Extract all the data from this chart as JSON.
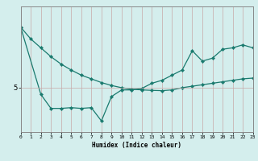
{
  "xlabel": "Humidex (Indice chaleur)",
  "background_color": "#d4eeed",
  "line_color": "#1a7a6e",
  "xlim": [
    0,
    23
  ],
  "ylim": [
    2.0,
    10.5
  ],
  "ytick_pos": 5,
  "xticks": [
    0,
    1,
    2,
    3,
    4,
    5,
    6,
    7,
    8,
    9,
    10,
    11,
    12,
    13,
    14,
    15,
    16,
    17,
    18,
    19,
    20,
    21,
    22,
    23
  ],
  "line1_x": [
    0,
    1,
    2,
    3,
    4,
    5,
    6,
    7,
    8,
    9,
    10,
    11,
    12,
    13,
    14,
    15,
    16,
    17,
    18,
    19,
    20,
    21,
    22,
    23
  ],
  "line1_y": [
    9.1,
    8.3,
    7.7,
    7.1,
    6.6,
    6.2,
    5.85,
    5.6,
    5.35,
    5.15,
    5.0,
    4.9,
    4.85,
    4.82,
    4.8,
    4.85,
    5.0,
    5.1,
    5.2,
    5.3,
    5.4,
    5.5,
    5.6,
    5.65
  ],
  "line2_x": [
    0,
    2,
    3,
    4,
    5,
    6,
    7,
    8,
    9,
    10,
    11,
    12,
    13,
    14,
    15,
    16,
    17,
    18,
    19,
    20,
    21,
    22,
    23
  ],
  "line2_y": [
    9.1,
    4.55,
    3.6,
    3.6,
    3.65,
    3.6,
    3.65,
    2.75,
    4.4,
    4.85,
    4.85,
    4.95,
    5.3,
    5.5,
    5.85,
    6.2,
    7.5,
    6.8,
    7.0,
    7.6,
    7.7,
    7.9,
    7.7
  ]
}
